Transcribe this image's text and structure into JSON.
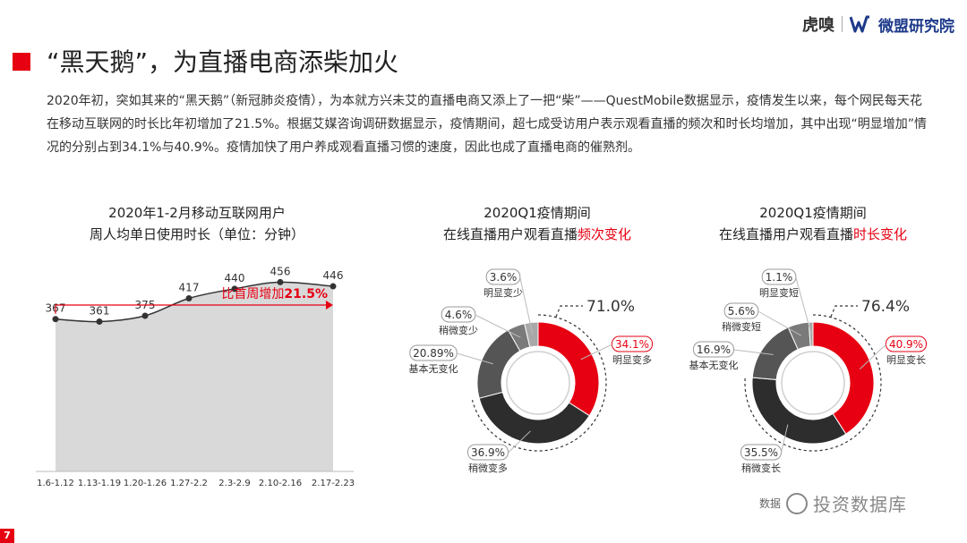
{
  "header": {
    "logo_huxiu": "虎嗅",
    "logo_weimeng": "微盟研究院",
    "title": "“黑天鹅”，为直播电商添柴加火"
  },
  "body_text": "2020年初，突如其来的“黑天鹅”（新冠肺炎疫情），为本就方兴未艾的直播电商又添上了一把“柴”——QuestMobile数据显示，疫情发生以来，每个网民每天花在移动互联网的时长比年初增加了21.5%。根据艾媒咨询调研数据显示，疫情期间，超七成受访用户表示观看直播的频次和时长均增加，其中出现“明显增加”情况的分别占到34.1%与40.9%。疫情加快了用户养成观看直播习惯的速度，因此也成了直播电商的催熟剂。",
  "colors": {
    "accent": "#e60012",
    "dark": "#2d2d2d",
    "mid": "#555555",
    "light": "#7a7a7a",
    "lighter": "#a8a8a8",
    "area": "#d9d9d9"
  },
  "chart_data": [
    {
      "type": "area",
      "title_line1": "2020年1-2月移动互联网用户",
      "title_line2": "周人均单日使用时长（单位：分钟）",
      "categories": [
        "1.6-1.12",
        "1.13-1.19",
        "1.20-1.26",
        "1.27-2.2",
        "2.3-2.9",
        "2.10-2.16",
        "2.17-2.23"
      ],
      "values": [
        367,
        361,
        375,
        417,
        440,
        456,
        446
      ],
      "annotation_text": "比首周增加",
      "annotation_value": "21.5%",
      "ylim": [
        0,
        500
      ]
    },
    {
      "type": "pie",
      "title_line1": "2020Q1疫情期间",
      "title_line2_prefix": "在线直播用户观看直播",
      "title_line2_highlight": "频次变化",
      "total_label": "71.0%",
      "slices": [
        {
          "label": "明显变多",
          "value_text": "34.1%",
          "value": 34.1
        },
        {
          "label": "稍微变多",
          "value_text": "36.9%",
          "value": 36.9
        },
        {
          "label": "基本无变化",
          "value_text": "20.89%",
          "value": 20.89
        },
        {
          "label": "稍微变少",
          "value_text": "4.6%",
          "value": 4.6
        },
        {
          "label": "明显变少",
          "value_text": "3.6%",
          "value": 3.6
        }
      ]
    },
    {
      "type": "pie",
      "title_line1": "2020Q1疫情期间",
      "title_line2_prefix": "在线直播用户观看直播",
      "title_line2_highlight": "时长变化",
      "total_label": "76.4%",
      "slices": [
        {
          "label": "明显变长",
          "value_text": "40.9%",
          "value": 40.9
        },
        {
          "label": "稍微变长",
          "value_text": "35.5%",
          "value": 35.5
        },
        {
          "label": "基本无变化",
          "value_text": "16.9%",
          "value": 16.9
        },
        {
          "label": "稍微变短",
          "value_text": "5.6%",
          "value": 5.6
        },
        {
          "label": "明显变短",
          "value_text": "1.1%",
          "value": 1.1
        }
      ]
    }
  ],
  "watermark": {
    "source_prefix": "数据",
    "text": "投资数据库"
  },
  "page_number": "7"
}
